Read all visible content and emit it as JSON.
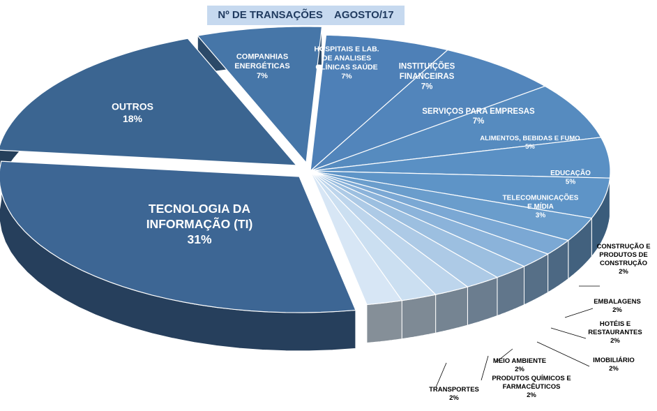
{
  "title": "Nº DE TRANSAÇÕES    AGOSTO/17",
  "chart_data": {
    "type": "pie",
    "title": "Nº DE TRANSAÇÕES    AGOSTO/17",
    "slices": [
      {
        "label": [
          "HOSPITAIS E LAB.",
          "DE ANALISES",
          "CLÍNICAS SAÚDE"
        ],
        "pct_label": "7%",
        "value": 7,
        "color": "#4e80b7"
      },
      {
        "label": [
          "INSTITUIÇÕES",
          "FINANCEIRAS"
        ],
        "pct_label": "7%",
        "value": 7,
        "color": "#5285bb"
      },
      {
        "label": [
          "SERVIÇOS PARA EMPRESAS"
        ],
        "pct_label": "7%",
        "value": 7,
        "color": "#568bbf"
      },
      {
        "label": [
          "ALIMENTOS, BEBIDAS E FUMO"
        ],
        "pct_label": "5%",
        "value": 5,
        "color": "#5a90c4"
      },
      {
        "label": [
          "EDUCAÇÃO"
        ],
        "pct_label": "5%",
        "value": 5,
        "color": "#5e94c7"
      },
      {
        "label": [
          "TELECOMUNICAÇÕES",
          "E MÍDIA"
        ],
        "pct_label": "3%",
        "value": 3,
        "color": "#6a9dcc"
      },
      {
        "label": [
          "CONSTRUÇÃO E",
          "PRODUTOS DE",
          "CONSTRUÇÃO"
        ],
        "pct_label": "2%",
        "value": 2,
        "color": "#7ba8d4"
      },
      {
        "label": [
          "EMBALAGENS"
        ],
        "pct_label": "2%",
        "value": 2,
        "color": "#8bb3da"
      },
      {
        "label": [
          "HOTÉIS E",
          "RESTAURANTES"
        ],
        "pct_label": "2%",
        "value": 2,
        "color": "#9cbfe0"
      },
      {
        "label": [
          "IMOBILIÁRIO"
        ],
        "pct_label": "2%",
        "value": 2,
        "color": "#adcae6"
      },
      {
        "label": [
          "MEIO AMBIENTE"
        ],
        "pct_label": "2%",
        "value": 2,
        "color": "#bdd5ec"
      },
      {
        "label": [
          "PRODUTOS QUÍMICOS E",
          "FARMACÊUTICOS"
        ],
        "pct_label": "2%",
        "value": 2,
        "color": "#cbdff1"
      },
      {
        "label": [
          "TRANSPORTES"
        ],
        "pct_label": "2%",
        "value": 2,
        "color": "#d7e6f5"
      },
      {
        "label": [
          "TECNOLOGIA DA",
          "INFORMAÇÃO (TI)"
        ],
        "pct_label": "31%",
        "value": 31,
        "color": "#3d6694"
      },
      {
        "label": [
          "OUTROS"
        ],
        "pct_label": "18%",
        "value": 18,
        "color": "#3b6591"
      },
      {
        "label": [
          "COMPANHIAS",
          "ENERGÉTICAS"
        ],
        "pct_label": "7%",
        "value": 7,
        "color": "#4676a8"
      }
    ]
  }
}
